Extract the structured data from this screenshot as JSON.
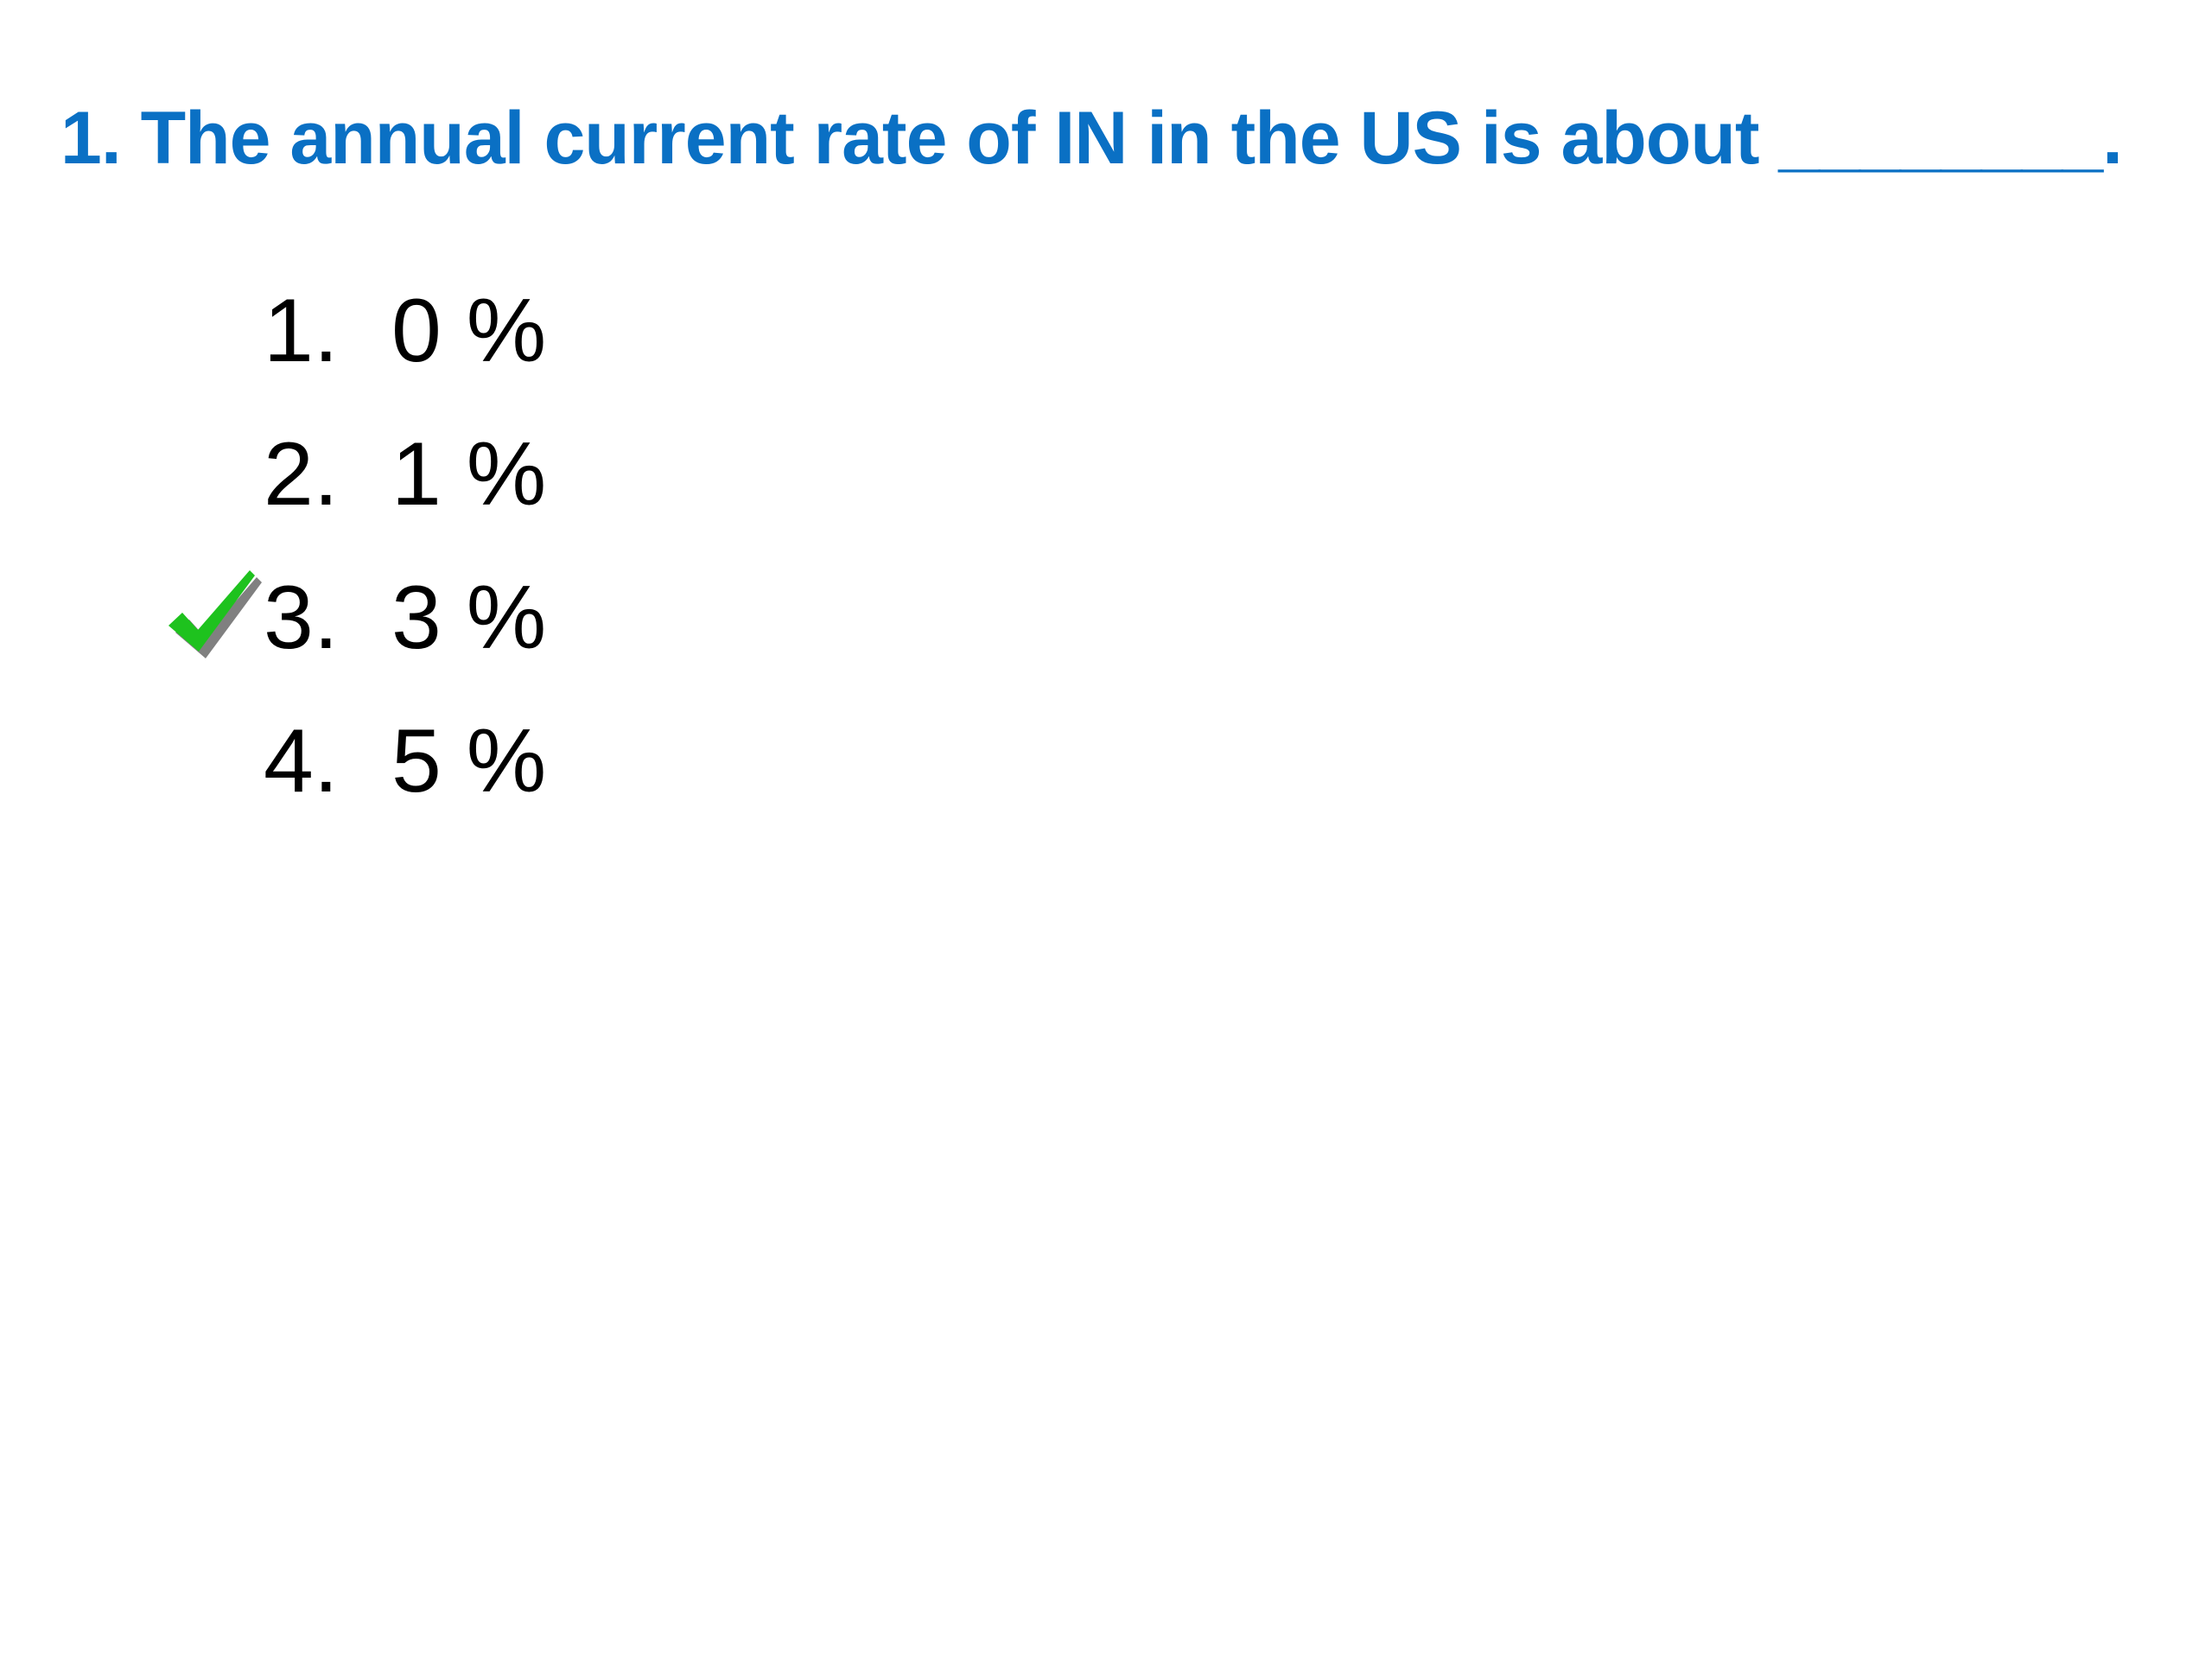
{
  "question": {
    "text": "1. The annual current rate of IN in the US is about ________."
  },
  "options": [
    {
      "number": "1.",
      "text": "0 %",
      "correct": false
    },
    {
      "number": "2.",
      "text": "1 %",
      "correct": false
    },
    {
      "number": "3.",
      "text": "3 %",
      "correct": true
    },
    {
      "number": "4.",
      "text": "5 %",
      "correct": false
    }
  ],
  "colors": {
    "question": "#0a70c4",
    "check": "#1ec21e",
    "check_shadow": "#808080"
  },
  "icons": {
    "correct_marker": "checkmark-icon"
  }
}
